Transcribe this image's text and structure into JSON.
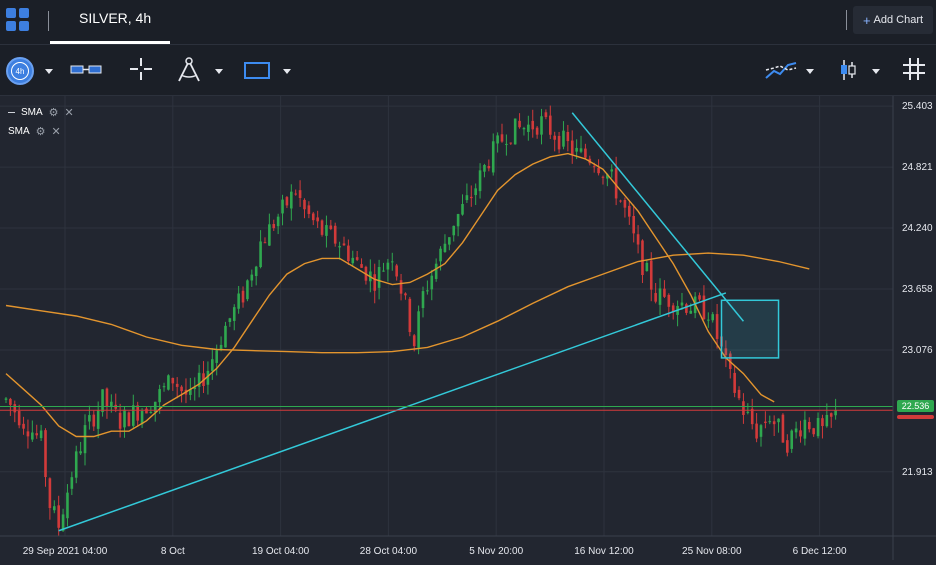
{
  "header": {
    "tab_title": "SILVER, 4h",
    "add_chart_label": "Add Chart",
    "add_chart_plus": "+"
  },
  "toolbar": {
    "interval_label": "4h"
  },
  "legend": [
    {
      "name": "SMA"
    },
    {
      "name": "SMA"
    }
  ],
  "colors": {
    "background": "#222630",
    "up_candle": "#2fa84f",
    "down_candle": "#d23a3a",
    "sma_line": "#e3952e",
    "trendline": "#33c9d9",
    "accent": "#3d7fe0",
    "price_badge_green": "#2fa84f",
    "price_badge_red": "#d23a3a"
  },
  "chart_data": {
    "type": "candlestick",
    "instrument": "SILVER",
    "interval": "4h",
    "y_axis": {
      "tick_labels": [
        "25.403",
        "24.821",
        "24.240",
        "23.658",
        "23.076",
        "21.913"
      ],
      "range": [
        21.3,
        25.5
      ]
    },
    "x_axis": {
      "tick_labels": [
        "29 Sep 2021 04:00",
        "8 Oct",
        "19 Oct 04:00",
        "28 Oct 04:00",
        "5 Nov 20:00",
        "16 Nov 12:00",
        "25 Nov 08:00",
        "6 Dec 12:00"
      ]
    },
    "current_price": {
      "label": "22.536",
      "value": 22.536
    },
    "bid_line": 22.5,
    "close_path": [
      [
        0,
        22.6
      ],
      [
        4,
        22.4
      ],
      [
        8,
        22.2
      ],
      [
        10,
        21.6
      ],
      [
        12,
        21.4
      ],
      [
        15,
        21.9
      ],
      [
        18,
        22.3
      ],
      [
        22,
        22.6
      ],
      [
        26,
        22.4
      ],
      [
        30,
        22.5
      ],
      [
        34,
        22.6
      ],
      [
        38,
        22.8
      ],
      [
        42,
        22.6
      ],
      [
        46,
        22.9
      ],
      [
        50,
        23.3
      ],
      [
        54,
        23.6
      ],
      [
        58,
        24.1
      ],
      [
        62,
        24.35
      ],
      [
        66,
        24.6
      ],
      [
        68,
        24.4
      ],
      [
        72,
        24.2
      ],
      [
        76,
        24.1
      ],
      [
        80,
        23.9
      ],
      [
        84,
        23.75
      ],
      [
        88,
        24.0
      ],
      [
        91,
        23.5
      ],
      [
        93,
        23.15
      ],
      [
        95,
        23.6
      ],
      [
        98,
        23.9
      ],
      [
        102,
        24.3
      ],
      [
        106,
        24.55
      ],
      [
        110,
        24.9
      ],
      [
        114,
        25.15
      ],
      [
        118,
        25.2
      ],
      [
        122,
        25.25
      ],
      [
        126,
        25.1
      ],
      [
        130,
        24.95
      ],
      [
        134,
        24.9
      ],
      [
        138,
        24.7
      ],
      [
        141,
        24.4
      ],
      [
        144,
        24.0
      ],
      [
        146,
        23.8
      ],
      [
        148,
        23.6
      ],
      [
        152,
        23.55
      ],
      [
        156,
        23.5
      ],
      [
        160,
        23.45
      ],
      [
        162,
        23.2
      ],
      [
        165,
        22.8
      ],
      [
        168,
        22.5
      ],
      [
        171,
        22.3
      ],
      [
        174,
        22.45
      ],
      [
        178,
        22.2
      ],
      [
        182,
        22.4
      ],
      [
        186,
        22.3
      ],
      [
        189,
        22.45
      ]
    ],
    "sma_fast": [
      [
        0,
        22.85
      ],
      [
        4,
        22.7
      ],
      [
        8,
        22.55
      ],
      [
        12,
        22.35
      ],
      [
        16,
        22.25
      ],
      [
        20,
        22.25
      ],
      [
        24,
        22.3
      ],
      [
        28,
        22.3
      ],
      [
        32,
        22.4
      ],
      [
        36,
        22.55
      ],
      [
        40,
        22.65
      ],
      [
        44,
        22.75
      ],
      [
        48,
        22.9
      ],
      [
        52,
        23.1
      ],
      [
        56,
        23.35
      ],
      [
        60,
        23.6
      ],
      [
        64,
        23.8
      ],
      [
        68,
        23.9
      ],
      [
        72,
        23.95
      ],
      [
        76,
        23.95
      ],
      [
        80,
        23.85
      ],
      [
        84,
        23.75
      ],
      [
        88,
        23.7
      ],
      [
        92,
        23.72
      ],
      [
        96,
        23.8
      ],
      [
        100,
        23.9
      ],
      [
        104,
        24.1
      ],
      [
        108,
        24.35
      ],
      [
        112,
        24.6
      ],
      [
        116,
        24.75
      ],
      [
        120,
        24.85
      ],
      [
        124,
        24.92
      ],
      [
        128,
        24.95
      ],
      [
        132,
        24.9
      ],
      [
        136,
        24.8
      ],
      [
        140,
        24.6
      ],
      [
        144,
        24.4
      ],
      [
        148,
        24.15
      ],
      [
        152,
        23.9
      ],
      [
        156,
        23.6
      ],
      [
        160,
        23.25
      ],
      [
        164,
        23.0
      ],
      [
        168,
        22.85
      ],
      [
        172,
        22.65
      ],
      [
        175,
        22.58
      ]
    ],
    "sma_slow": [
      [
        0,
        23.5
      ],
      [
        8,
        23.45
      ],
      [
        16,
        23.4
      ],
      [
        24,
        23.32
      ],
      [
        32,
        23.2
      ],
      [
        40,
        23.12
      ],
      [
        48,
        23.08
      ],
      [
        56,
        23.07
      ],
      [
        64,
        23.06
      ],
      [
        72,
        23.05
      ],
      [
        80,
        23.05
      ],
      [
        88,
        23.06
      ],
      [
        96,
        23.1
      ],
      [
        104,
        23.2
      ],
      [
        112,
        23.35
      ],
      [
        120,
        23.52
      ],
      [
        128,
        23.68
      ],
      [
        136,
        23.8
      ],
      [
        144,
        23.92
      ],
      [
        152,
        23.98
      ],
      [
        160,
        24.0
      ],
      [
        168,
        23.98
      ],
      [
        176,
        23.92
      ],
      [
        183,
        23.85
      ]
    ],
    "trendlines": [
      {
        "points": [
          [
            12,
            21.35
          ],
          [
            164,
            23.62
          ]
        ]
      },
      {
        "points": [
          [
            129,
            25.34
          ],
          [
            168,
            23.35
          ]
        ]
      }
    ],
    "rectangle": {
      "x": [
        163,
        176
      ],
      "y": [
        23.0,
        23.55
      ]
    }
  }
}
